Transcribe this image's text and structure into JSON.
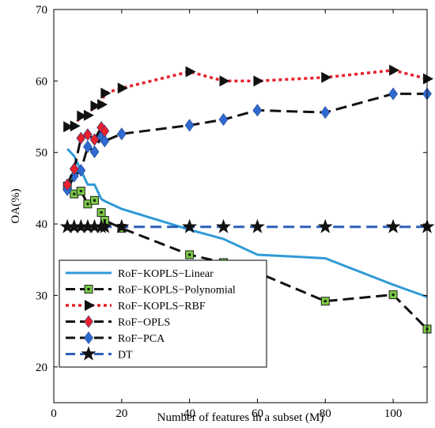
{
  "chart_data": {
    "type": "line",
    "title": "",
    "xlabel": "Number of features in a subset (M)",
    "ylabel": "OA(%)",
    "xlim": [
      0,
      110
    ],
    "ylim": [
      15,
      70
    ],
    "xticks": [
      0,
      20,
      40,
      60,
      80,
      100
    ],
    "yticks": [
      20,
      30,
      40,
      50,
      60,
      70
    ],
    "grid": false,
    "legend_position": "bottom-left",
    "series": [
      {
        "name": "RoF−KOPLS−Linear",
        "color": "#2f9ad6",
        "dashed": false,
        "marker": "none",
        "x": [
          4,
          6,
          8,
          10,
          12,
          14,
          15,
          20,
          40,
          50,
          60,
          80,
          100,
          110
        ],
        "y": [
          50.5,
          49.5,
          47.5,
          45.5,
          45.5,
          43.5,
          43.2,
          42.1,
          39.2,
          37.9,
          35.7,
          35.2,
          31.5,
          29.8
        ]
      },
      {
        "name": "RoF−KOPLS−Polynomial",
        "color": "#111111",
        "marker_color": "#7ac943",
        "dashed": true,
        "marker": "square",
        "x": [
          4,
          6,
          8,
          10,
          12,
          14,
          15,
          20,
          40,
          50,
          60,
          80,
          100,
          110
        ],
        "y": [
          45.3,
          44.2,
          44.6,
          42.8,
          43.3,
          41.6,
          40.5,
          39.4,
          35.7,
          34.6,
          33.2,
          29.2,
          30.1,
          25.3
        ]
      },
      {
        "name": "RoF−KOPLS−RBF",
        "color": "#e8202a",
        "marker_color": "#111111",
        "dashed": true,
        "dotted": true,
        "marker": "triangle-right",
        "x": [
          4,
          6,
          8,
          10,
          12,
          14,
          15,
          20,
          40,
          50,
          60,
          80,
          100,
          110
        ],
        "y": [
          53.6,
          53.7,
          55.1,
          55.2,
          56.5,
          56.7,
          58.3,
          59.0,
          61.3,
          60.0,
          60.0,
          60.5,
          61.5,
          60.3
        ]
      },
      {
        "name": "RoF−OPLS",
        "color": "#111111",
        "marker_color": "#e8202a",
        "dashed": true,
        "marker": "diamond",
        "x": [
          4,
          6,
          8,
          10,
          12,
          14,
          15
        ],
        "y": [
          45.5,
          47.7,
          52.0,
          52.5,
          51.8,
          53.5,
          53.0
        ]
      },
      {
        "name": "RoF−PCA",
        "color": "#111111",
        "marker_color": "#2f6ad0",
        "dashed": true,
        "marker": "diamond",
        "x": [
          4,
          6,
          8,
          10,
          12,
          14,
          15,
          20,
          40,
          50,
          60,
          80,
          100,
          110
        ],
        "y": [
          44.8,
          46.7,
          47.5,
          50.8,
          50.1,
          52.3,
          51.6,
          52.6,
          53.8,
          54.6,
          55.9,
          55.6,
          58.2,
          58.2
        ]
      },
      {
        "name": "DT",
        "color": "#2f5fb8",
        "marker_color": "#111111",
        "dashed": true,
        "marker": "star",
        "x": [
          4,
          6,
          8,
          10,
          12,
          14,
          15,
          20,
          40,
          50,
          60,
          80,
          100,
          110
        ],
        "y": [
          39.6,
          39.6,
          39.6,
          39.6,
          39.6,
          39.6,
          39.6,
          39.6,
          39.6,
          39.6,
          39.6,
          39.6,
          39.6,
          39.6
        ]
      }
    ]
  }
}
